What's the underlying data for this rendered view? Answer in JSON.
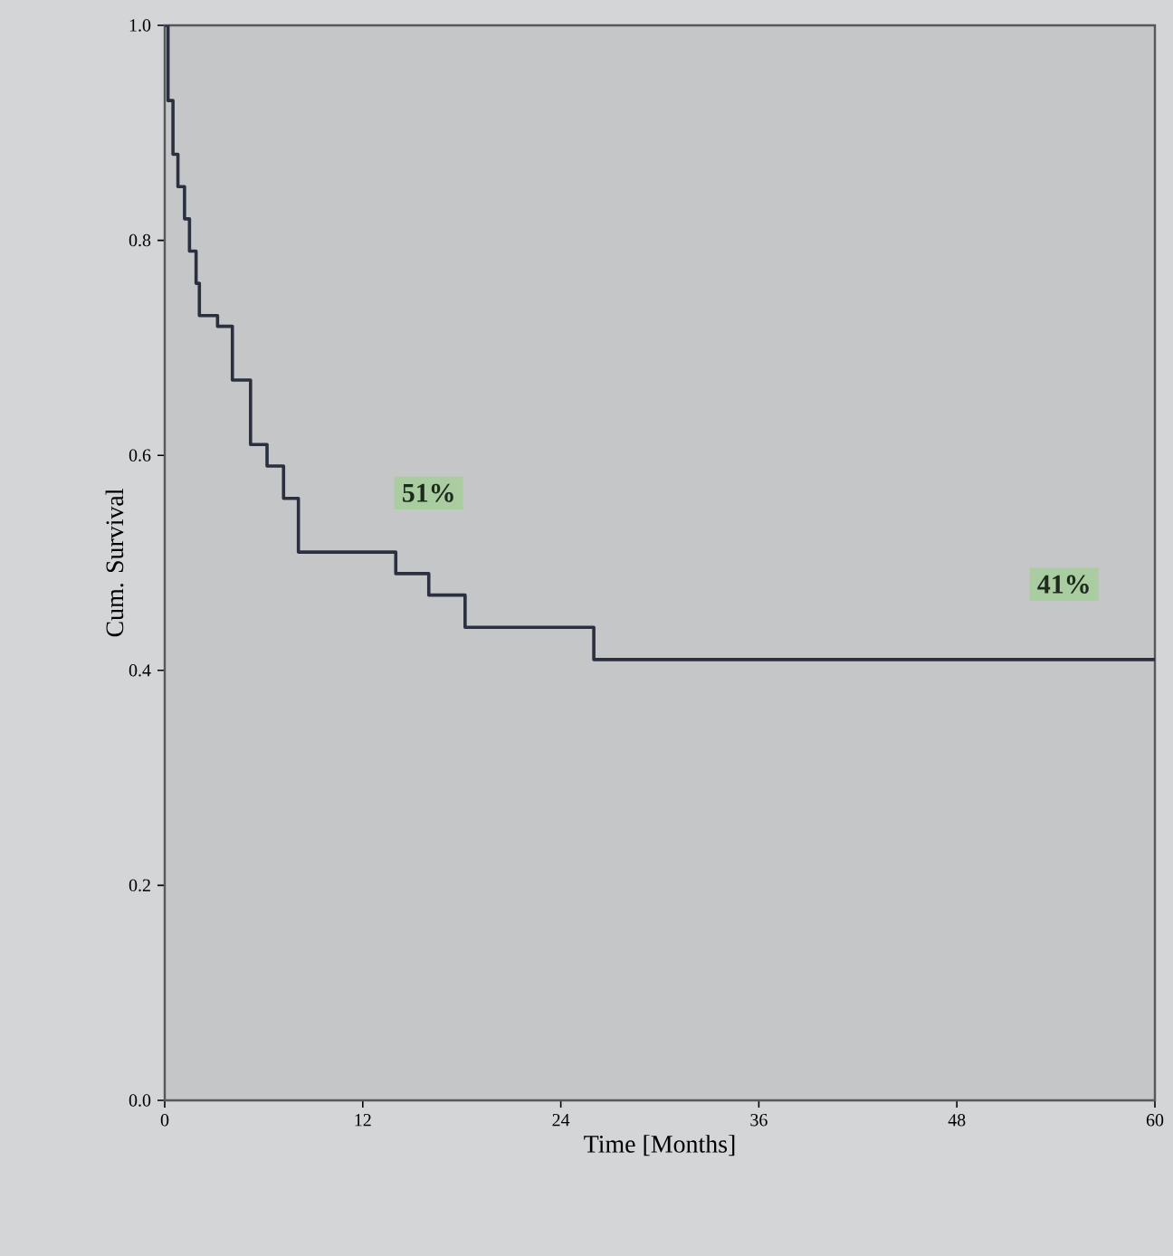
{
  "chart_data": {
    "type": "step",
    "xlabel": "Time [Months]",
    "ylabel": "Cum. Survival",
    "x": [
      0,
      0.2,
      0.5,
      0.8,
      1.2,
      1.5,
      1.9,
      2.1,
      3.2,
      4.1,
      5.2,
      6.2,
      7.2,
      8.1,
      14.0,
      16.0,
      18.2,
      26.0,
      60
    ],
    "series": [
      {
        "color": "#2a3040",
        "values": [
          1.0,
          0.93,
          0.88,
          0.85,
          0.82,
          0.79,
          0.76,
          0.73,
          0.72,
          0.67,
          0.61,
          0.59,
          0.56,
          0.51,
          0.49,
          0.47,
          0.44,
          0.41,
          0.41
        ]
      }
    ],
    "xlim": [
      0,
      60
    ],
    "ylim": [
      0,
      1
    ],
    "xticks": [
      0,
      12,
      24,
      36,
      48,
      60
    ],
    "yticks": [
      {
        "value": 0,
        "label": "0.0"
      },
      {
        "value": 0.2,
        "label": "0.2"
      },
      {
        "value": 0.4,
        "label": "0.4"
      },
      {
        "value": 0.6,
        "label": "0.6"
      },
      {
        "value": 0.8,
        "label": "0.8"
      },
      {
        "value": 1,
        "label": "1.0"
      }
    ],
    "annotations": [
      {
        "text": "51%",
        "x": 16,
        "y": 0.565
      },
      {
        "text": "41%",
        "x": 54.5,
        "y": 0.48
      }
    ],
    "grid": false,
    "marker": "none",
    "line_style": "solid"
  }
}
